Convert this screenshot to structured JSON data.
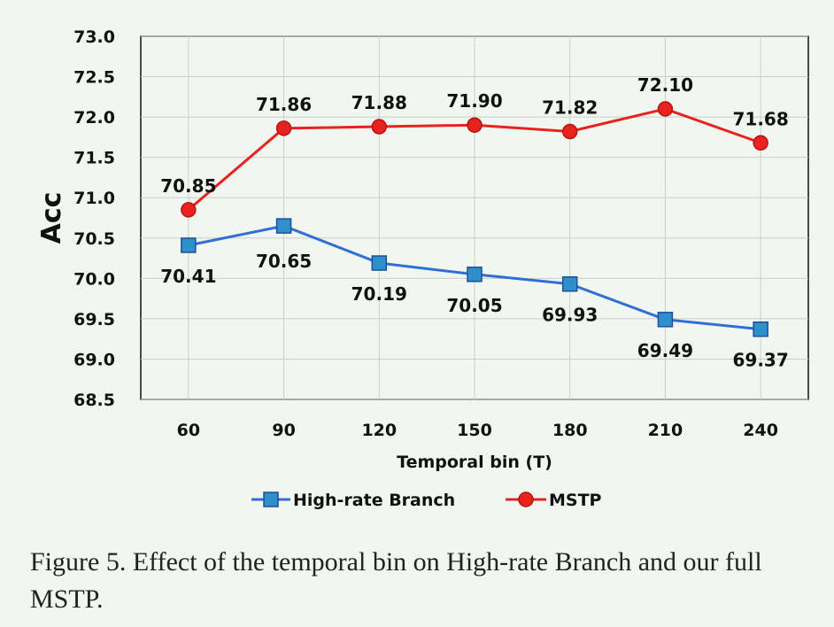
{
  "chart_data": {
    "type": "line",
    "xlabel": "Temporal bin (T)",
    "ylabel": "Acc",
    "categories": [
      "60",
      "90",
      "120",
      "150",
      "180",
      "210",
      "240"
    ],
    "ylim": [
      68.5,
      73.0
    ],
    "yticks": [
      "73.0",
      "72.5",
      "72.0",
      "71.5",
      "71.0",
      "70.5",
      "70.0",
      "69.5",
      "69.0",
      "68.5"
    ],
    "grid": true,
    "legend_position": "bottom",
    "series": [
      {
        "name": "High-rate Branch",
        "color": "#2f6fd6",
        "marker_fill": "#2f8fc9",
        "marker": "square",
        "values": [
          70.41,
          70.65,
          70.19,
          70.05,
          69.93,
          69.49,
          69.37
        ],
        "labels": [
          "70.41",
          "70.65",
          "70.19",
          "70.05",
          "69.93",
          "69.49",
          "69.37"
        ]
      },
      {
        "name": "MSTP",
        "color": "#e8231f",
        "marker_fill": "#e8231f",
        "marker": "circle",
        "values": [
          70.85,
          71.86,
          71.88,
          71.9,
          71.82,
          72.1,
          71.68
        ],
        "labels": [
          "70.85",
          "71.86",
          "71.88",
          "71.90",
          "71.82",
          "72.10",
          "71.68"
        ]
      }
    ]
  },
  "caption": "Figure 5. Effect of the temporal bin on High-rate Branch and our full MSTP."
}
